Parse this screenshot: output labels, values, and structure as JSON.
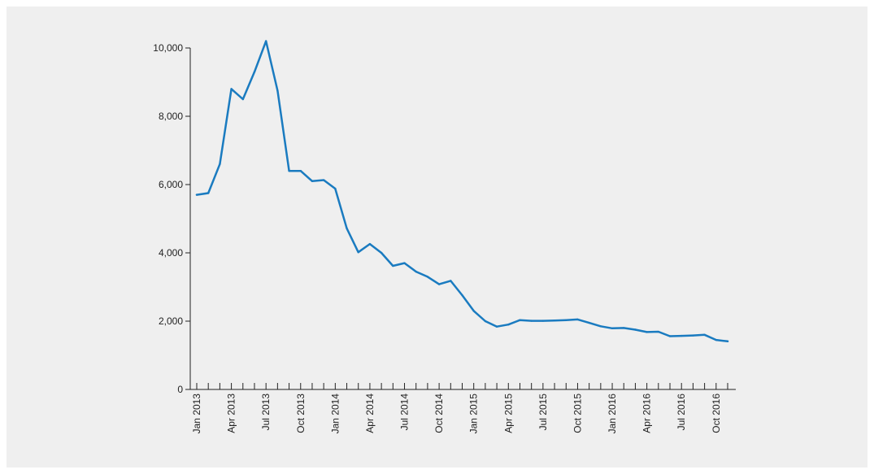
{
  "chart_data": {
    "type": "line",
    "title": "",
    "xlabel": "",
    "ylabel": "",
    "ylim": [
      0,
      10000
    ],
    "yticks": [
      {
        "value": 0,
        "label": "0"
      },
      {
        "value": 2000,
        "label": "2,000"
      },
      {
        "value": 4000,
        "label": "4,000"
      },
      {
        "value": 6000,
        "label": "6,000"
      },
      {
        "value": 8000,
        "label": "8,000"
      },
      {
        "value": 10000,
        "label": "10,000"
      }
    ],
    "xlim": [
      "2013-01",
      "2016-11"
    ],
    "xticks": [
      {
        "value": "2013-01",
        "label": "Jan 2013"
      },
      {
        "value": "2013-04",
        "label": "Apr 2013"
      },
      {
        "value": "2013-07",
        "label": "Jul 2013"
      },
      {
        "value": "2013-10",
        "label": "Oct 2013"
      },
      {
        "value": "2014-01",
        "label": "Jan 2014"
      },
      {
        "value": "2014-04",
        "label": "Apr 2014"
      },
      {
        "value": "2014-07",
        "label": "Jul 2014"
      },
      {
        "value": "2014-10",
        "label": "Oct 2014"
      },
      {
        "value": "2015-01",
        "label": "Jan 2015"
      },
      {
        "value": "2015-04",
        "label": "Apr 2015"
      },
      {
        "value": "2015-07",
        "label": "Jul 2015"
      },
      {
        "value": "2015-10",
        "label": "Oct 2015"
      },
      {
        "value": "2016-01",
        "label": "Jan 2016"
      },
      {
        "value": "2016-04",
        "label": "Apr 2016"
      },
      {
        "value": "2016-07",
        "label": "Jul 2016"
      },
      {
        "value": "2016-10",
        "label": "Oct 2016"
      }
    ],
    "grid": false,
    "legend": "none",
    "series": [
      {
        "name": "",
        "color": "#1a7bc0",
        "x": [
          "2013-01",
          "2013-02",
          "2013-03",
          "2013-04",
          "2013-05",
          "2013-06",
          "2013-07",
          "2013-08",
          "2013-09",
          "2013-10",
          "2013-11",
          "2013-12",
          "2014-01",
          "2014-02",
          "2014-03",
          "2014-04",
          "2014-05",
          "2014-06",
          "2014-07",
          "2014-08",
          "2014-09",
          "2014-10",
          "2014-11",
          "2014-12",
          "2015-01",
          "2015-02",
          "2015-03",
          "2015-04",
          "2015-05",
          "2015-06",
          "2015-07",
          "2015-08",
          "2015-09",
          "2015-10",
          "2015-11",
          "2015-12",
          "2016-01",
          "2016-02",
          "2016-03",
          "2016-04",
          "2016-05",
          "2016-06",
          "2016-07",
          "2016-08",
          "2016-09",
          "2016-10",
          "2016-11"
        ],
        "values": [
          5700,
          5750,
          6600,
          8800,
          8500,
          9300,
          10200,
          8750,
          6400,
          6400,
          6100,
          6130,
          5880,
          4720,
          4020,
          4260,
          4000,
          3620,
          3700,
          3450,
          3300,
          3080,
          3180,
          2760,
          2300,
          2000,
          1840,
          1900,
          2030,
          2010,
          2010,
          2020,
          2030,
          2050,
          1950,
          1850,
          1790,
          1800,
          1750,
          1680,
          1690,
          1560,
          1570,
          1580,
          1600,
          1450,
          1410
        ]
      }
    ]
  }
}
